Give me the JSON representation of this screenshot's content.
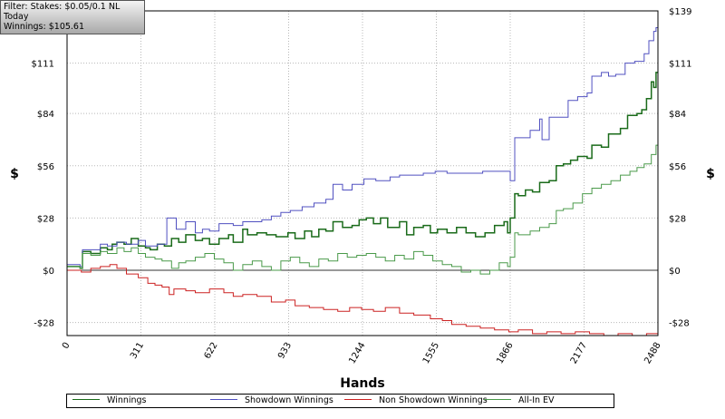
{
  "filter": {
    "line1": "Filter: Stakes: $0.05/0.1 NL",
    "line2": "Today",
    "line3": "Winnings: $105.61"
  },
  "chart_data": {
    "type": "line",
    "xlabel": "Hands",
    "ylabel": "$",
    "xlim": [
      0,
      2488
    ],
    "ylim": [
      -35,
      139
    ],
    "x_ticks": [
      0,
      311,
      622,
      933,
      1244,
      1555,
      1866,
      2177,
      2488
    ],
    "x_tick_labels": [
      "0",
      "311",
      "622",
      "933",
      "1244",
      "1555",
      "1866",
      "2177",
      "2488"
    ],
    "y_ticks": [
      -28,
      0,
      28,
      56,
      84,
      111,
      139
    ],
    "y_tick_labels": [
      "-$28",
      "$0",
      "$28",
      "$56",
      "$84",
      "$111",
      "$139"
    ],
    "grid": true,
    "legend_position": "bottom",
    "series": [
      {
        "name": "Winnings",
        "color": "#1a6b1a",
        "points": [
          [
            0,
            2
          ],
          [
            55,
            1
          ],
          [
            65,
            10
          ],
          [
            100,
            9
          ],
          [
            140,
            12
          ],
          [
            170,
            11
          ],
          [
            190,
            14
          ],
          [
            210,
            15
          ],
          [
            240,
            14
          ],
          [
            270,
            17
          ],
          [
            300,
            13
          ],
          [
            330,
            12
          ],
          [
            350,
            11
          ],
          [
            380,
            14
          ],
          [
            410,
            13
          ],
          [
            440,
            17
          ],
          [
            470,
            15
          ],
          [
            500,
            19
          ],
          [
            540,
            16
          ],
          [
            570,
            17
          ],
          [
            600,
            14
          ],
          [
            640,
            17
          ],
          [
            680,
            19
          ],
          [
            700,
            15
          ],
          [
            740,
            22
          ],
          [
            760,
            19
          ],
          [
            800,
            20
          ],
          [
            840,
            19
          ],
          [
            880,
            18
          ],
          [
            930,
            20
          ],
          [
            960,
            17
          ],
          [
            1000,
            21
          ],
          [
            1030,
            18
          ],
          [
            1060,
            22
          ],
          [
            1090,
            21
          ],
          [
            1120,
            26
          ],
          [
            1160,
            23
          ],
          [
            1200,
            24
          ],
          [
            1230,
            27
          ],
          [
            1260,
            28
          ],
          [
            1290,
            25
          ],
          [
            1320,
            28
          ],
          [
            1350,
            23
          ],
          [
            1400,
            26
          ],
          [
            1430,
            19
          ],
          [
            1460,
            23
          ],
          [
            1500,
            24
          ],
          [
            1530,
            20
          ],
          [
            1560,
            22
          ],
          [
            1600,
            20
          ],
          [
            1640,
            23
          ],
          [
            1680,
            20
          ],
          [
            1720,
            18
          ],
          [
            1760,
            20
          ],
          [
            1800,
            24
          ],
          [
            1840,
            26
          ],
          [
            1855,
            20
          ],
          [
            1866,
            28
          ],
          [
            1885,
            41
          ],
          [
            1900,
            40
          ],
          [
            1930,
            43
          ],
          [
            1960,
            42
          ],
          [
            1990,
            47
          ],
          [
            2030,
            48
          ],
          [
            2060,
            56
          ],
          [
            2090,
            57
          ],
          [
            2120,
            59
          ],
          [
            2150,
            61
          ],
          [
            2190,
            60
          ],
          [
            2210,
            67
          ],
          [
            2250,
            66
          ],
          [
            2280,
            73
          ],
          [
            2330,
            76
          ],
          [
            2360,
            83
          ],
          [
            2400,
            84
          ],
          [
            2420,
            86
          ],
          [
            2440,
            92
          ],
          [
            2460,
            101
          ],
          [
            2470,
            98
          ],
          [
            2480,
            106
          ],
          [
            2488,
            106
          ]
        ]
      },
      {
        "name": "Showdown Winnings",
        "color": "#5050c0",
        "points": [
          [
            0,
            3
          ],
          [
            55,
            2
          ],
          [
            65,
            11
          ],
          [
            100,
            11
          ],
          [
            140,
            14
          ],
          [
            170,
            13
          ],
          [
            210,
            15
          ],
          [
            250,
            14
          ],
          [
            300,
            16
          ],
          [
            330,
            13
          ],
          [
            380,
            14
          ],
          [
            420,
            28
          ],
          [
            460,
            22
          ],
          [
            500,
            26
          ],
          [
            540,
            20
          ],
          [
            570,
            22
          ],
          [
            600,
            21
          ],
          [
            640,
            25
          ],
          [
            680,
            25
          ],
          [
            700,
            24
          ],
          [
            740,
            26
          ],
          [
            780,
            26
          ],
          [
            820,
            27
          ],
          [
            860,
            29
          ],
          [
            900,
            31
          ],
          [
            940,
            32
          ],
          [
            990,
            34
          ],
          [
            1040,
            36
          ],
          [
            1090,
            38
          ],
          [
            1120,
            46
          ],
          [
            1160,
            43
          ],
          [
            1200,
            46
          ],
          [
            1250,
            49
          ],
          [
            1300,
            48
          ],
          [
            1360,
            50
          ],
          [
            1400,
            51
          ],
          [
            1450,
            51
          ],
          [
            1500,
            52
          ],
          [
            1550,
            53
          ],
          [
            1600,
            52
          ],
          [
            1640,
            52
          ],
          [
            1700,
            52
          ],
          [
            1750,
            53
          ],
          [
            1800,
            53
          ],
          [
            1840,
            53
          ],
          [
            1866,
            48
          ],
          [
            1885,
            71
          ],
          [
            1950,
            75
          ],
          [
            1990,
            81
          ],
          [
            2000,
            70
          ],
          [
            2030,
            82
          ],
          [
            2060,
            82
          ],
          [
            2110,
            91
          ],
          [
            2150,
            93
          ],
          [
            2190,
            95
          ],
          [
            2210,
            104
          ],
          [
            2250,
            106
          ],
          [
            2280,
            104
          ],
          [
            2310,
            105
          ],
          [
            2350,
            111
          ],
          [
            2390,
            112
          ],
          [
            2430,
            116
          ],
          [
            2450,
            123
          ],
          [
            2470,
            128
          ],
          [
            2480,
            130
          ],
          [
            2488,
            139
          ]
        ]
      },
      {
        "name": "Non Showdown Winnings",
        "color": "#cc2222",
        "points": [
          [
            0,
            0
          ],
          [
            60,
            -1
          ],
          [
            100,
            1
          ],
          [
            140,
            2
          ],
          [
            180,
            3
          ],
          [
            210,
            1
          ],
          [
            250,
            -2
          ],
          [
            300,
            -4
          ],
          [
            340,
            -7
          ],
          [
            370,
            -8
          ],
          [
            400,
            -9
          ],
          [
            430,
            -13
          ],
          [
            450,
            -10
          ],
          [
            500,
            -11
          ],
          [
            540,
            -12
          ],
          [
            600,
            -10
          ],
          [
            660,
            -12
          ],
          [
            700,
            -14
          ],
          [
            740,
            -13
          ],
          [
            800,
            -14
          ],
          [
            860,
            -17
          ],
          [
            920,
            -16
          ],
          [
            960,
            -19
          ],
          [
            1020,
            -20
          ],
          [
            1080,
            -21
          ],
          [
            1140,
            -22
          ],
          [
            1190,
            -20
          ],
          [
            1240,
            -21
          ],
          [
            1290,
            -22
          ],
          [
            1340,
            -20
          ],
          [
            1400,
            -23
          ],
          [
            1460,
            -24
          ],
          [
            1530,
            -26
          ],
          [
            1580,
            -27
          ],
          [
            1620,
            -29
          ],
          [
            1680,
            -30
          ],
          [
            1740,
            -31
          ],
          [
            1800,
            -32
          ],
          [
            1860,
            -33
          ],
          [
            1900,
            -32
          ],
          [
            1960,
            -34
          ],
          [
            2020,
            -33
          ],
          [
            2080,
            -34
          ],
          [
            2140,
            -33
          ],
          [
            2200,
            -34
          ],
          [
            2260,
            -35
          ],
          [
            2320,
            -34
          ],
          [
            2380,
            -35
          ],
          [
            2440,
            -34
          ],
          [
            2488,
            -35
          ]
        ]
      },
      {
        "name": "All-In EV",
        "color": "#4a9a4a",
        "points": [
          [
            0,
            2
          ],
          [
            55,
            1
          ],
          [
            65,
            9
          ],
          [
            100,
            8
          ],
          [
            140,
            10
          ],
          [
            170,
            9
          ],
          [
            210,
            12
          ],
          [
            240,
            10
          ],
          [
            270,
            12
          ],
          [
            300,
            9
          ],
          [
            330,
            7
          ],
          [
            370,
            6
          ],
          [
            400,
            5
          ],
          [
            440,
            1
          ],
          [
            470,
            4
          ],
          [
            500,
            5
          ],
          [
            540,
            7
          ],
          [
            580,
            9
          ],
          [
            620,
            6
          ],
          [
            660,
            4
          ],
          [
            700,
            0
          ],
          [
            740,
            3
          ],
          [
            780,
            5
          ],
          [
            820,
            2
          ],
          [
            860,
            0
          ],
          [
            900,
            5
          ],
          [
            940,
            7
          ],
          [
            980,
            4
          ],
          [
            1020,
            2
          ],
          [
            1060,
            6
          ],
          [
            1100,
            5
          ],
          [
            1140,
            9
          ],
          [
            1180,
            7
          ],
          [
            1220,
            8
          ],
          [
            1260,
            9
          ],
          [
            1300,
            7
          ],
          [
            1340,
            5
          ],
          [
            1380,
            8
          ],
          [
            1420,
            6
          ],
          [
            1460,
            10
          ],
          [
            1500,
            8
          ],
          [
            1540,
            5
          ],
          [
            1580,
            3
          ],
          [
            1620,
            2
          ],
          [
            1660,
            -1
          ],
          [
            1700,
            0
          ],
          [
            1740,
            -2
          ],
          [
            1780,
            0
          ],
          [
            1820,
            4
          ],
          [
            1855,
            2
          ],
          [
            1866,
            7
          ],
          [
            1885,
            20
          ],
          [
            1900,
            19
          ],
          [
            1950,
            21
          ],
          [
            1990,
            23
          ],
          [
            2030,
            25
          ],
          [
            2060,
            32
          ],
          [
            2090,
            33
          ],
          [
            2130,
            36
          ],
          [
            2170,
            41
          ],
          [
            2210,
            44
          ],
          [
            2250,
            46
          ],
          [
            2290,
            48
          ],
          [
            2330,
            51
          ],
          [
            2370,
            53
          ],
          [
            2400,
            55
          ],
          [
            2430,
            57
          ],
          [
            2460,
            62
          ],
          [
            2480,
            67
          ],
          [
            2488,
            68
          ]
        ]
      }
    ]
  }
}
